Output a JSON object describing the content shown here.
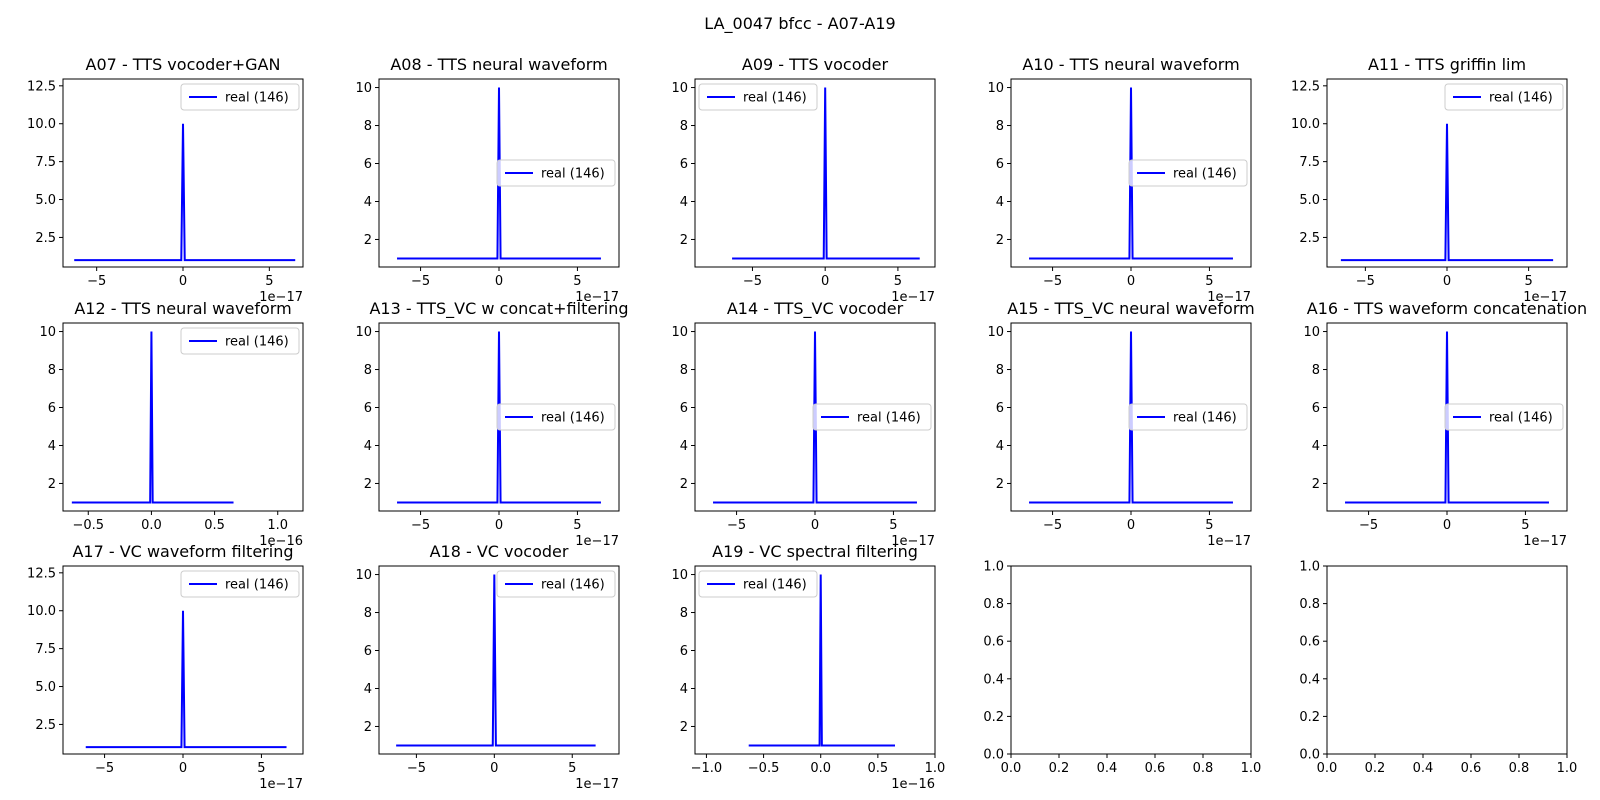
{
  "figure": {
    "title": "LA_0047 bfcc - A07-A19"
  },
  "chart_data": [
    {
      "id": "A07",
      "type": "line",
      "title": "A07 - TTS vocoder+GAN",
      "xlim": [
        -6.95,
        6.95
      ],
      "ylim": [
        0.55,
        12.95
      ],
      "xticks": [
        -5,
        0,
        5
      ],
      "xtick_labels": [
        "−5",
        "0",
        "5"
      ],
      "yticks": [
        2.5,
        5.0,
        7.5,
        10.0,
        12.5
      ],
      "ytick_labels": [
        "2.5",
        "5.0",
        "7.5",
        "10.0",
        "12.5"
      ],
      "x_offset": "1e−17",
      "legend": {
        "label": "real (146)",
        "loc": "upper right"
      },
      "series": [
        {
          "name": "real (146)",
          "color": "#0000ff",
          "x": [
            -6.3,
            -0.1,
            0,
            0.1,
            6.5
          ],
          "y": [
            1,
            1,
            10,
            1,
            1
          ]
        }
      ]
    },
    {
      "id": "A08",
      "type": "line",
      "title": "A08 - TTS neural waveform",
      "xlim": [
        -7.65,
        7.65
      ],
      "ylim": [
        0.55,
        10.45
      ],
      "xticks": [
        -5,
        0,
        5
      ],
      "xtick_labels": [
        "−5",
        "0",
        "5"
      ],
      "yticks": [
        2,
        4,
        6,
        8,
        10
      ],
      "ytick_labels": [
        "2",
        "4",
        "6",
        "8",
        "10"
      ],
      "x_offset": "1e−17",
      "legend": {
        "label": "real (146)",
        "loc": "center right"
      },
      "series": [
        {
          "name": "real (146)",
          "color": "#0000ff",
          "x": [
            -6.5,
            -0.1,
            0,
            0.1,
            6.5
          ],
          "y": [
            1,
            1,
            10,
            1,
            1
          ]
        }
      ]
    },
    {
      "id": "A09",
      "type": "line",
      "title": "A09 - TTS vocoder",
      "xlim": [
        -8.95,
        7.55
      ],
      "ylim": [
        0.55,
        10.45
      ],
      "xticks": [
        -5,
        0,
        5
      ],
      "xtick_labels": [
        "−5",
        "0",
        "5"
      ],
      "yticks": [
        2,
        4,
        6,
        8,
        10
      ],
      "ytick_labels": [
        "2",
        "4",
        "6",
        "8",
        "10"
      ],
      "x_offset": "1e−17",
      "legend": {
        "label": "real (146)",
        "loc": "upper left"
      },
      "series": [
        {
          "name": "real (146)",
          "color": "#0000ff",
          "x": [
            -6.4,
            -0.1,
            0,
            0.1,
            6.5
          ],
          "y": [
            1,
            1,
            10,
            1,
            1
          ]
        }
      ]
    },
    {
      "id": "A10",
      "type": "line",
      "title": "A10 - TTS neural waveform",
      "xlim": [
        -7.65,
        7.65
      ],
      "ylim": [
        0.55,
        10.45
      ],
      "xticks": [
        -5,
        0,
        5
      ],
      "xtick_labels": [
        "−5",
        "0",
        "5"
      ],
      "yticks": [
        2,
        4,
        6,
        8,
        10
      ],
      "ytick_labels": [
        "2",
        "4",
        "6",
        "8",
        "10"
      ],
      "x_offset": "1e−17",
      "legend": {
        "label": "real (146)",
        "loc": "center right"
      },
      "series": [
        {
          "name": "real (146)",
          "color": "#0000ff",
          "x": [
            -6.5,
            -0.1,
            0,
            0.1,
            6.5
          ],
          "y": [
            1,
            1,
            10,
            1,
            1
          ]
        }
      ]
    },
    {
      "id": "A11",
      "type": "line",
      "title": "A11 - TTS griffin lim",
      "xlim": [
        -7.35,
        7.35
      ],
      "ylim": [
        0.55,
        12.95
      ],
      "xticks": [
        -5,
        0,
        5
      ],
      "xtick_labels": [
        "−5",
        "0",
        "5"
      ],
      "yticks": [
        2.5,
        5.0,
        7.5,
        10.0,
        12.5
      ],
      "ytick_labels": [
        "2.5",
        "5.0",
        "7.5",
        "10.0",
        "12.5"
      ],
      "x_offset": "1e−17",
      "legend": {
        "label": "real (146)",
        "loc": "upper right"
      },
      "series": [
        {
          "name": "real (146)",
          "color": "#0000ff",
          "x": [
            -6.5,
            -0.1,
            0,
            0.1,
            6.5
          ],
          "y": [
            1,
            1,
            10,
            1,
            1
          ]
        }
      ]
    },
    {
      "id": "A12",
      "type": "line",
      "title": "A12 - TTS neural waveform",
      "xlim": [
        -0.7,
        1.2
      ],
      "ylim": [
        0.55,
        10.45
      ],
      "xticks": [
        -0.5,
        0.0,
        0.5,
        1.0
      ],
      "xtick_labels": [
        "−0.5",
        "0.0",
        "0.5",
        "1.0"
      ],
      "yticks": [
        2,
        4,
        6,
        8,
        10
      ],
      "ytick_labels": [
        "2",
        "4",
        "6",
        "8",
        "10"
      ],
      "x_offset": "1e−16",
      "legend": {
        "label": "real (146)",
        "loc": "upper right"
      },
      "series": [
        {
          "name": "real (146)",
          "color": "#0000ff",
          "x": [
            -0.63,
            -0.01,
            0,
            0.01,
            0.65
          ],
          "y": [
            1,
            1,
            10,
            1,
            1
          ]
        }
      ]
    },
    {
      "id": "A13",
      "type": "line",
      "title": "A13 - TTS_VC w concat+filtering",
      "xlim": [
        -7.65,
        7.65
      ],
      "ylim": [
        0.55,
        10.45
      ],
      "xticks": [
        -5,
        0,
        5
      ],
      "xtick_labels": [
        "−5",
        "0",
        "5"
      ],
      "yticks": [
        2,
        4,
        6,
        8,
        10
      ],
      "ytick_labels": [
        "2",
        "4",
        "6",
        "8",
        "10"
      ],
      "x_offset": "1e−17",
      "legend": {
        "label": "real (146)",
        "loc": "center right"
      },
      "series": [
        {
          "name": "real (146)",
          "color": "#0000ff",
          "x": [
            -6.5,
            -0.1,
            0,
            0.1,
            6.5
          ],
          "y": [
            1,
            1,
            10,
            1,
            1
          ]
        }
      ]
    },
    {
      "id": "A14",
      "type": "line",
      "title": "A14 - TTS_VC vocoder",
      "xlim": [
        -7.65,
        7.65
      ],
      "ylim": [
        0.55,
        10.45
      ],
      "xticks": [
        -5,
        0,
        5
      ],
      "xtick_labels": [
        "−5",
        "0",
        "5"
      ],
      "yticks": [
        2,
        4,
        6,
        8,
        10
      ],
      "ytick_labels": [
        "2",
        "4",
        "6",
        "8",
        "10"
      ],
      "x_offset": "1e−17",
      "legend": {
        "label": "real (146)",
        "loc": "center right"
      },
      "series": [
        {
          "name": "real (146)",
          "color": "#0000ff",
          "x": [
            -6.5,
            -0.1,
            0,
            0.1,
            6.5
          ],
          "y": [
            1,
            1,
            10,
            1,
            1
          ]
        }
      ]
    },
    {
      "id": "A15",
      "type": "line",
      "title": "A15 - TTS_VC neural waveform",
      "xlim": [
        -7.65,
        7.65
      ],
      "ylim": [
        0.55,
        10.45
      ],
      "xticks": [
        -5,
        0,
        5
      ],
      "xtick_labels": [
        "−5",
        "0",
        "5"
      ],
      "yticks": [
        2,
        4,
        6,
        8,
        10
      ],
      "ytick_labels": [
        "2",
        "4",
        "6",
        "8",
        "10"
      ],
      "x_offset": "1e−17",
      "legend": {
        "label": "real (146)",
        "loc": "center right"
      },
      "series": [
        {
          "name": "real (146)",
          "color": "#0000ff",
          "x": [
            -6.5,
            -0.1,
            0,
            0.1,
            6.5
          ],
          "y": [
            1,
            1,
            10,
            1,
            1
          ]
        }
      ]
    },
    {
      "id": "A16",
      "type": "line",
      "title": "A16 - TTS waveform concatenation",
      "xlim": [
        -7.65,
        7.65
      ],
      "ylim": [
        0.55,
        10.45
      ],
      "xticks": [
        -5,
        0,
        5
      ],
      "xtick_labels": [
        "−5",
        "0",
        "5"
      ],
      "yticks": [
        2,
        4,
        6,
        8,
        10
      ],
      "ytick_labels": [
        "2",
        "4",
        "6",
        "8",
        "10"
      ],
      "x_offset": "1e−17",
      "legend": {
        "label": "real (146)",
        "loc": "center right"
      },
      "series": [
        {
          "name": "real (146)",
          "color": "#0000ff",
          "x": [
            -6.5,
            -0.1,
            0,
            0.1,
            6.5
          ],
          "y": [
            1,
            1,
            10,
            1,
            1
          ]
        }
      ]
    },
    {
      "id": "A17",
      "type": "line",
      "title": "A17 - VC waveform filtering",
      "xlim": [
        -7.65,
        7.65
      ],
      "ylim": [
        0.55,
        12.95
      ],
      "xticks": [
        -5,
        0,
        5
      ],
      "xtick_labels": [
        "−5",
        "0",
        "5"
      ],
      "yticks": [
        2.5,
        5.0,
        7.5,
        10.0,
        12.5
      ],
      "ytick_labels": [
        "2.5",
        "5.0",
        "7.5",
        "10.0",
        "12.5"
      ],
      "x_offset": "1e−17",
      "legend": {
        "label": "real (146)",
        "loc": "upper right"
      },
      "series": [
        {
          "name": "real (146)",
          "color": "#0000ff",
          "x": [
            -6.2,
            -0.1,
            0,
            0.1,
            6.6
          ],
          "y": [
            1,
            1,
            10,
            1,
            1
          ]
        }
      ]
    },
    {
      "id": "A18",
      "type": "line",
      "title": "A18 - VC vocoder",
      "xlim": [
        -7.4,
        8.0
      ],
      "ylim": [
        0.55,
        10.45
      ],
      "xticks": [
        -5,
        0,
        5
      ],
      "xtick_labels": [
        "−5",
        "0",
        "5"
      ],
      "yticks": [
        2,
        4,
        6,
        8,
        10
      ],
      "ytick_labels": [
        "2",
        "4",
        "6",
        "8",
        "10"
      ],
      "x_offset": "1e−17",
      "legend": {
        "label": "real (146)",
        "loc": "upper right"
      },
      "series": [
        {
          "name": "real (146)",
          "color": "#0000ff",
          "x": [
            -6.3,
            -0.1,
            0,
            0.1,
            6.5
          ],
          "y": [
            1,
            1,
            10,
            1,
            1
          ]
        }
      ]
    },
    {
      "id": "A19",
      "type": "line",
      "title": "A19 - VC spectral filtering",
      "xlim": [
        -1.1,
        1.0
      ],
      "ylim": [
        0.55,
        10.45
      ],
      "xticks": [
        -1.0,
        -0.5,
        0.0,
        0.5,
        1.0
      ],
      "xtick_labels": [
        "−1.0",
        "−0.5",
        "0.0",
        "0.5",
        "1.0"
      ],
      "yticks": [
        2,
        4,
        6,
        8,
        10
      ],
      "ytick_labels": [
        "2",
        "4",
        "6",
        "8",
        "10"
      ],
      "x_offset": "1e−16",
      "legend": {
        "label": "real (146)",
        "loc": "upper left"
      },
      "series": [
        {
          "name": "real (146)",
          "color": "#0000ff",
          "x": [
            -0.63,
            -0.01,
            0,
            0.01,
            0.65
          ],
          "y": [
            1,
            1,
            10,
            1,
            1
          ]
        }
      ]
    },
    {
      "id": "empty1",
      "type": "line",
      "title": "",
      "xlim": [
        0,
        1
      ],
      "ylim": [
        0,
        1
      ],
      "xticks": [
        0,
        0.2,
        0.4,
        0.6,
        0.8,
        1.0
      ],
      "xtick_labels": [
        "0.0",
        "0.2",
        "0.4",
        "0.6",
        "0.8",
        "1.0"
      ],
      "yticks": [
        0,
        0.2,
        0.4,
        0.6,
        0.8,
        1.0
      ],
      "ytick_labels": [
        "0.0",
        "0.2",
        "0.4",
        "0.6",
        "0.8",
        "1.0"
      ],
      "x_offset": "",
      "series": []
    },
    {
      "id": "empty2",
      "type": "line",
      "title": "",
      "xlim": [
        0,
        1
      ],
      "ylim": [
        0,
        1
      ],
      "xticks": [
        0,
        0.2,
        0.4,
        0.6,
        0.8,
        1.0
      ],
      "xtick_labels": [
        "0.0",
        "0.2",
        "0.4",
        "0.6",
        "0.8",
        "1.0"
      ],
      "yticks": [
        0,
        0.2,
        0.4,
        0.6,
        0.8,
        1.0
      ],
      "ytick_labels": [
        "0.0",
        "0.2",
        "0.4",
        "0.6",
        "0.8",
        "1.0"
      ],
      "x_offset": "",
      "series": []
    }
  ]
}
